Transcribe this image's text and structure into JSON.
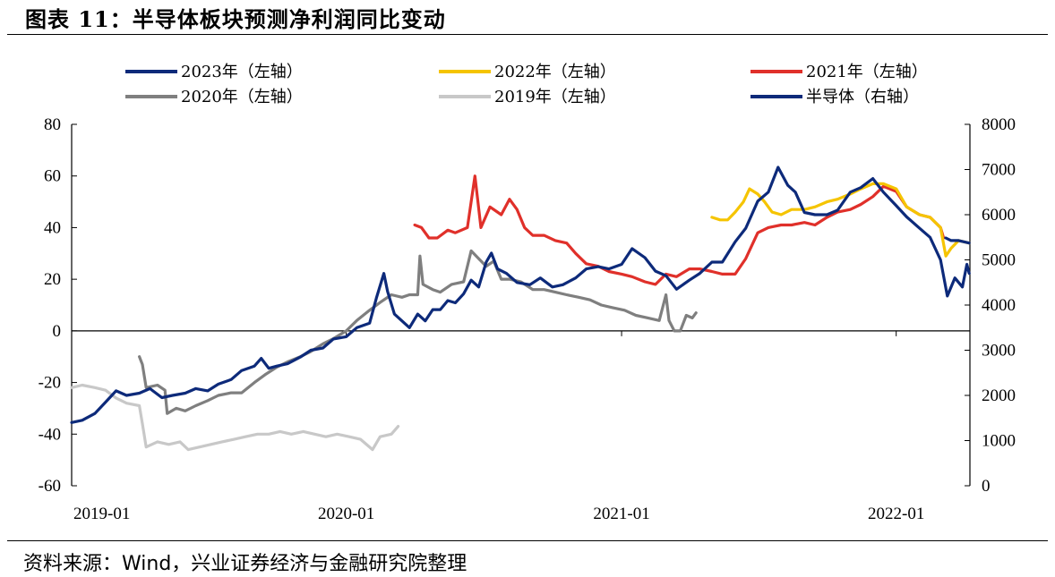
{
  "header": {
    "title": "图表 11：半导体板块预测净利润同比变动"
  },
  "footer": {
    "source": "资料来源：Wind，兴业证券经济与金融研究院整理"
  },
  "chart_data": {
    "type": "line",
    "left_axis": {
      "ylim": [
        -60,
        80
      ],
      "ticks": [
        "-60",
        "-40",
        "-20",
        "0",
        "20",
        "40",
        "60",
        "80"
      ]
    },
    "right_axis": {
      "ylim": [
        0,
        8000
      ],
      "ticks": [
        "0",
        "1000",
        "2000",
        "3000",
        "4000",
        "5000",
        "6000",
        "7000",
        "8000"
      ]
    },
    "x_axis": {
      "range": [
        "2019-01",
        "2022-04"
      ],
      "ticks": [
        "2019-01",
        "2020-01",
        "2021-01",
        "2022-01"
      ]
    },
    "grid": false,
    "legend": "top",
    "series": [
      {
        "name": "2023年（左轴）",
        "axis": "left",
        "color": "#0d2a7a",
        "points": [
          [
            "2022-03-08",
            36
          ],
          [
            "2022-03-15",
            35
          ],
          [
            "2022-03-25",
            35
          ],
          [
            "2022-04-08",
            34
          ]
        ]
      },
      {
        "name": "2022年（左轴）",
        "axis": "left",
        "color": "#f5c400",
        "points": [
          [
            "2021-05-01",
            44
          ],
          [
            "2021-05-12",
            43
          ],
          [
            "2021-05-22",
            43
          ],
          [
            "2021-06-01",
            46
          ],
          [
            "2021-06-12",
            50
          ],
          [
            "2021-06-20",
            55
          ],
          [
            "2021-07-01",
            53
          ],
          [
            "2021-07-10",
            50
          ],
          [
            "2021-07-20",
            46
          ],
          [
            "2021-08-01",
            45
          ],
          [
            "2021-08-15",
            47
          ],
          [
            "2021-09-01",
            47
          ],
          [
            "2021-09-15",
            48
          ],
          [
            "2021-10-01",
            50
          ],
          [
            "2021-10-15",
            51
          ],
          [
            "2021-11-01",
            53
          ],
          [
            "2021-11-15",
            55
          ],
          [
            "2021-12-01",
            57
          ],
          [
            "2021-12-15",
            57
          ],
          [
            "2022-01-01",
            55
          ],
          [
            "2022-01-15",
            48
          ],
          [
            "2022-02-01",
            45
          ],
          [
            "2022-02-15",
            44
          ],
          [
            "2022-03-01",
            40
          ],
          [
            "2022-03-08",
            29
          ],
          [
            "2022-03-15",
            32
          ],
          [
            "2022-03-25",
            35
          ],
          [
            "2022-04-08",
            34
          ]
        ]
      },
      {
        "name": "2021年（左轴）",
        "axis": "left",
        "color": "#e0302a",
        "points": [
          [
            "2020-04-01",
            41
          ],
          [
            "2020-04-10",
            40
          ],
          [
            "2020-04-20",
            36
          ],
          [
            "2020-05-01",
            36
          ],
          [
            "2020-05-15",
            39
          ],
          [
            "2020-05-25",
            38
          ],
          [
            "2020-06-10",
            40
          ],
          [
            "2020-06-20",
            60
          ],
          [
            "2020-06-28",
            40
          ],
          [
            "2020-07-10",
            48
          ],
          [
            "2020-07-25",
            45
          ],
          [
            "2020-08-05",
            51
          ],
          [
            "2020-08-15",
            47
          ],
          [
            "2020-08-25",
            40
          ],
          [
            "2020-09-05",
            37
          ],
          [
            "2020-09-20",
            37
          ],
          [
            "2020-10-05",
            35
          ],
          [
            "2020-10-20",
            34
          ],
          [
            "2020-11-01",
            30
          ],
          [
            "2020-11-15",
            26
          ],
          [
            "2020-12-01",
            25
          ],
          [
            "2020-12-15",
            23
          ],
          [
            "2021-01-01",
            22
          ],
          [
            "2021-01-15",
            21
          ],
          [
            "2021-02-01",
            19
          ],
          [
            "2021-02-15",
            18
          ],
          [
            "2021-03-01",
            22
          ],
          [
            "2021-03-15",
            21
          ],
          [
            "2021-04-01",
            24
          ],
          [
            "2021-04-15",
            24
          ],
          [
            "2021-05-01",
            23
          ],
          [
            "2021-05-15",
            22
          ],
          [
            "2021-06-01",
            22
          ],
          [
            "2021-06-15",
            28
          ],
          [
            "2021-07-01",
            38
          ],
          [
            "2021-07-15",
            40
          ],
          [
            "2021-08-01",
            41
          ],
          [
            "2021-08-15",
            41
          ],
          [
            "2021-09-01",
            42
          ],
          [
            "2021-09-15",
            41
          ],
          [
            "2021-10-01",
            44
          ],
          [
            "2021-10-15",
            46
          ],
          [
            "2021-11-01",
            47
          ],
          [
            "2021-11-15",
            49
          ],
          [
            "2021-12-01",
            52
          ],
          [
            "2021-12-15",
            56
          ],
          [
            "2022-01-01",
            54
          ],
          [
            "2022-01-15",
            48
          ],
          [
            "2022-02-01",
            45
          ],
          [
            "2022-02-15",
            44
          ],
          [
            "2022-03-01",
            40
          ],
          [
            "2022-03-05",
            36
          ]
        ]
      },
      {
        "name": "2020年（左轴）",
        "axis": "left",
        "color": "#7f7f7f",
        "points": [
          [
            "2019-04-01",
            -10
          ],
          [
            "2019-04-05",
            -13
          ],
          [
            "2019-04-10",
            -22
          ],
          [
            "2019-04-25",
            -21
          ],
          [
            "2019-05-05",
            -23
          ],
          [
            "2019-05-08",
            -32
          ],
          [
            "2019-05-20",
            -30
          ],
          [
            "2019-06-01",
            -31
          ],
          [
            "2019-06-15",
            -29
          ],
          [
            "2019-07-01",
            -27
          ],
          [
            "2019-07-15",
            -25
          ],
          [
            "2019-08-01",
            -24
          ],
          [
            "2019-08-15",
            -24
          ],
          [
            "2019-09-01",
            -20
          ],
          [
            "2019-09-15",
            -17
          ],
          [
            "2019-10-01",
            -14
          ],
          [
            "2019-10-15",
            -12
          ],
          [
            "2019-11-01",
            -10
          ],
          [
            "2019-11-15",
            -8
          ],
          [
            "2019-12-01",
            -5
          ],
          [
            "2019-12-15",
            -3
          ],
          [
            "2020-01-01",
            0
          ],
          [
            "2020-01-15",
            4
          ],
          [
            "2020-02-01",
            8
          ],
          [
            "2020-02-15",
            11
          ],
          [
            "2020-03-01",
            14
          ],
          [
            "2020-03-15",
            13
          ],
          [
            "2020-03-25",
            14
          ],
          [
            "2020-04-05",
            14
          ],
          [
            "2020-04-08",
            29
          ],
          [
            "2020-04-12",
            18
          ],
          [
            "2020-04-25",
            16
          ],
          [
            "2020-05-05",
            15
          ],
          [
            "2020-05-20",
            18
          ],
          [
            "2020-06-05",
            19
          ],
          [
            "2020-06-15",
            31
          ],
          [
            "2020-06-25",
            28
          ],
          [
            "2020-07-05",
            25
          ],
          [
            "2020-07-15",
            27
          ],
          [
            "2020-07-25",
            20
          ],
          [
            "2020-08-05",
            20
          ],
          [
            "2020-08-20",
            19
          ],
          [
            "2020-09-05",
            16
          ],
          [
            "2020-09-20",
            16
          ],
          [
            "2020-10-05",
            15
          ],
          [
            "2020-10-20",
            14
          ],
          [
            "2020-11-05",
            13
          ],
          [
            "2020-11-20",
            12
          ],
          [
            "2020-12-05",
            10
          ],
          [
            "2020-12-20",
            9
          ],
          [
            "2021-01-05",
            8
          ],
          [
            "2021-01-20",
            6
          ],
          [
            "2021-02-05",
            5
          ],
          [
            "2021-02-20",
            4
          ],
          [
            "2021-03-01",
            14
          ],
          [
            "2021-03-05",
            4
          ],
          [
            "2021-03-12",
            0
          ],
          [
            "2021-03-20",
            0
          ],
          [
            "2021-03-28",
            6
          ],
          [
            "2021-04-05",
            5
          ],
          [
            "2021-04-10",
            7
          ]
        ]
      },
      {
        "name": "2019年（左轴）",
        "axis": "left",
        "color": "#c8c8c8",
        "points": [
          [
            "2019-01-01",
            -22
          ],
          [
            "2019-01-15",
            -21
          ],
          [
            "2019-02-01",
            -22
          ],
          [
            "2019-02-15",
            -23
          ],
          [
            "2019-03-01",
            -26
          ],
          [
            "2019-03-15",
            -28
          ],
          [
            "2019-04-01",
            -29
          ],
          [
            "2019-04-05",
            -36
          ],
          [
            "2019-04-10",
            -45
          ],
          [
            "2019-04-25",
            -43
          ],
          [
            "2019-05-10",
            -44
          ],
          [
            "2019-05-25",
            -43
          ],
          [
            "2019-06-05",
            -46
          ],
          [
            "2019-06-20",
            -45
          ],
          [
            "2019-07-05",
            -44
          ],
          [
            "2019-07-20",
            -43
          ],
          [
            "2019-08-05",
            -42
          ],
          [
            "2019-08-20",
            -41
          ],
          [
            "2019-09-05",
            -40
          ],
          [
            "2019-09-20",
            -40
          ],
          [
            "2019-10-05",
            -39
          ],
          [
            "2019-10-20",
            -40
          ],
          [
            "2019-11-05",
            -39
          ],
          [
            "2019-11-20",
            -40
          ],
          [
            "2019-12-05",
            -41
          ],
          [
            "2019-12-20",
            -40
          ],
          [
            "2020-01-05",
            -41
          ],
          [
            "2020-01-20",
            -42
          ],
          [
            "2020-02-05",
            -46
          ],
          [
            "2020-02-15",
            -41
          ],
          [
            "2020-03-01",
            -40
          ],
          [
            "2020-03-10",
            -37
          ]
        ]
      },
      {
        "name": "半导体（右轴）",
        "axis": "right",
        "color": "#0d2a7a",
        "points": [
          [
            "2019-01-01",
            1400
          ],
          [
            "2019-01-15",
            1450
          ],
          [
            "2019-02-01",
            1600
          ],
          [
            "2019-02-15",
            1850
          ],
          [
            "2019-03-01",
            2100
          ],
          [
            "2019-03-15",
            2000
          ],
          [
            "2019-04-01",
            2050
          ],
          [
            "2019-04-15",
            2150
          ],
          [
            "2019-05-01",
            1950
          ],
          [
            "2019-05-15",
            2000
          ],
          [
            "2019-06-01",
            2050
          ],
          [
            "2019-06-15",
            2150
          ],
          [
            "2019-07-01",
            2100
          ],
          [
            "2019-07-15",
            2250
          ],
          [
            "2019-08-01",
            2350
          ],
          [
            "2019-08-15",
            2550
          ],
          [
            "2019-09-01",
            2650
          ],
          [
            "2019-09-10",
            2820
          ],
          [
            "2019-09-20",
            2600
          ],
          [
            "2019-10-01",
            2650
          ],
          [
            "2019-10-15",
            2700
          ],
          [
            "2019-11-01",
            2850
          ],
          [
            "2019-11-15",
            3000
          ],
          [
            "2019-12-01",
            3050
          ],
          [
            "2019-12-15",
            3250
          ],
          [
            "2020-01-01",
            3300
          ],
          [
            "2020-01-15",
            3500
          ],
          [
            "2020-02-01",
            3600
          ],
          [
            "2020-02-10",
            4150
          ],
          [
            "2020-02-20",
            4700
          ],
          [
            "2020-02-25",
            4300
          ],
          [
            "2020-03-05",
            3800
          ],
          [
            "2020-03-15",
            3650
          ],
          [
            "2020-03-25",
            3500
          ],
          [
            "2020-04-05",
            3800
          ],
          [
            "2020-04-15",
            3650
          ],
          [
            "2020-04-25",
            3900
          ],
          [
            "2020-05-05",
            3900
          ],
          [
            "2020-05-15",
            4100
          ],
          [
            "2020-05-25",
            4050
          ],
          [
            "2020-06-05",
            4250
          ],
          [
            "2020-06-15",
            4550
          ],
          [
            "2020-06-25",
            4400
          ],
          [
            "2020-07-05",
            4950
          ],
          [
            "2020-07-12",
            5150
          ],
          [
            "2020-07-20",
            4800
          ],
          [
            "2020-08-01",
            4700
          ],
          [
            "2020-08-15",
            4500
          ],
          [
            "2020-09-01",
            4450
          ],
          [
            "2020-09-15",
            4600
          ],
          [
            "2020-10-01",
            4400
          ],
          [
            "2020-10-15",
            4450
          ],
          [
            "2020-11-01",
            4600
          ],
          [
            "2020-11-15",
            4800
          ],
          [
            "2020-12-01",
            4850
          ],
          [
            "2020-12-15",
            4800
          ],
          [
            "2021-01-01",
            4900
          ],
          [
            "2021-01-15",
            5250
          ],
          [
            "2021-02-01",
            5050
          ],
          [
            "2021-02-15",
            4750
          ],
          [
            "2021-03-01",
            4650
          ],
          [
            "2021-03-15",
            4350
          ],
          [
            "2021-04-01",
            4550
          ],
          [
            "2021-04-15",
            4700
          ],
          [
            "2021-05-01",
            4950
          ],
          [
            "2021-05-15",
            4950
          ],
          [
            "2021-06-01",
            5400
          ],
          [
            "2021-06-15",
            5700
          ],
          [
            "2021-07-01",
            6300
          ],
          [
            "2021-07-15",
            6500
          ],
          [
            "2021-07-28",
            7050
          ],
          [
            "2021-08-10",
            6650
          ],
          [
            "2021-08-20",
            6500
          ],
          [
            "2021-09-01",
            6050
          ],
          [
            "2021-09-15",
            6000
          ],
          [
            "2021-10-01",
            6000
          ],
          [
            "2021-10-15",
            6100
          ],
          [
            "2021-11-01",
            6500
          ],
          [
            "2021-11-15",
            6600
          ],
          [
            "2021-12-01",
            6800
          ],
          [
            "2021-12-15",
            6500
          ],
          [
            "2022-01-01",
            6200
          ],
          [
            "2022-01-15",
            5950
          ],
          [
            "2022-02-01",
            5700
          ],
          [
            "2022-02-15",
            5500
          ],
          [
            "2022-03-01",
            5000
          ],
          [
            "2022-03-10",
            4200
          ],
          [
            "2022-03-20",
            4600
          ],
          [
            "2022-03-30",
            4400
          ],
          [
            "2022-04-05",
            4900
          ],
          [
            "2022-04-08",
            4700
          ]
        ]
      }
    ]
  }
}
